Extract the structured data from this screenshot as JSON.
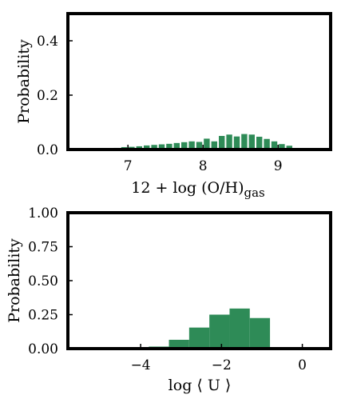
{
  "chart_data": [
    {
      "type": "bar",
      "xlim": [
        6.2,
        9.7
      ],
      "ylim": [
        0.0,
        0.5
      ],
      "xticks": [
        7,
        8,
        9
      ],
      "yticks": [
        0.0,
        0.2,
        0.4
      ],
      "xtick_labels": [
        "7",
        "8",
        "9"
      ],
      "ytick_labels": [
        "0.0",
        "0.2",
        "0.4"
      ],
      "xlabel_main": "12 + log (O/H)",
      "xlabel_sub": "gas",
      "ylabel": "Probability",
      "bar_color": "#2e8b57",
      "grid": false,
      "bin_width": 0.1,
      "bin_starts": [
        6.7,
        6.8,
        6.9,
        7.0,
        7.1,
        7.2,
        7.3,
        7.4,
        7.5,
        7.6,
        7.7,
        7.8,
        7.9,
        8.0,
        8.1,
        8.2,
        8.3,
        8.4,
        8.5,
        8.6,
        8.7,
        8.8,
        8.9,
        9.0,
        9.1
      ],
      "values": [
        0.002,
        0.006,
        0.009,
        0.01,
        0.012,
        0.015,
        0.017,
        0.019,
        0.021,
        0.024,
        0.027,
        0.03,
        0.028,
        0.04,
        0.03,
        0.05,
        0.055,
        0.048,
        0.057,
        0.055,
        0.047,
        0.039,
        0.03,
        0.02,
        0.014
      ]
    },
    {
      "type": "bar",
      "xlim": [
        -5.8,
        0.7
      ],
      "ylim": [
        0.0,
        1.0
      ],
      "xticks": [
        -4,
        -2,
        0
      ],
      "yticks": [
        0.0,
        0.25,
        0.5,
        0.75,
        1.0
      ],
      "xtick_labels": [
        "−4",
        "−2",
        "0"
      ],
      "ytick_labels": [
        "0.00",
        "0.25",
        "0.50",
        "0.75",
        "1.00"
      ],
      "xlabel": "log ⟨ U ⟩",
      "ylabel": "Probability",
      "bar_color": "#2e8b57",
      "grid": false,
      "edges": [
        -4.3,
        -3.8,
        -3.3,
        -2.8,
        -2.3,
        -1.8,
        -1.3,
        -0.8
      ],
      "values": [
        0.002,
        0.015,
        0.065,
        0.155,
        0.25,
        0.295,
        0.225
      ]
    }
  ]
}
